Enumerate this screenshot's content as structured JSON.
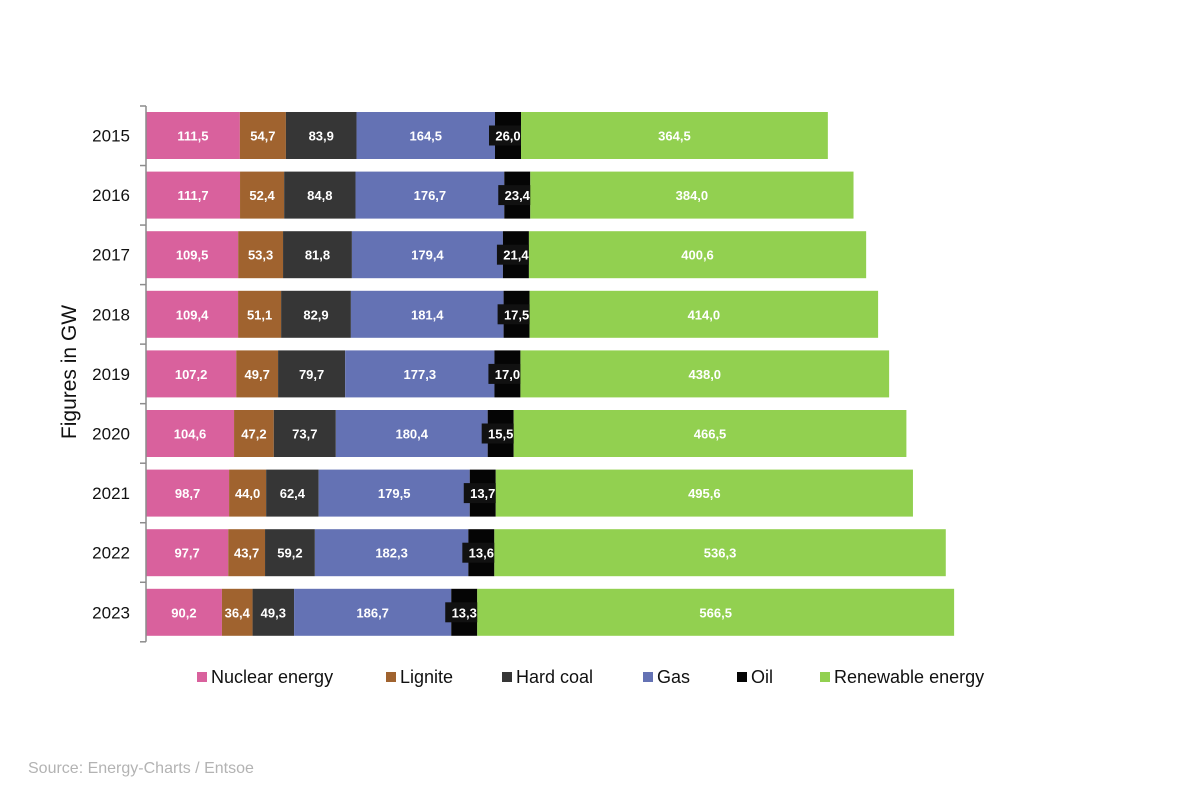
{
  "source": "Source: Energy-Charts / Entsoe",
  "chart_data": {
    "type": "bar",
    "orientation": "horizontal",
    "stacked": true,
    "title": "",
    "xlabel": "",
    "ylabel": "Figures in GW",
    "categories": [
      "2015",
      "2016",
      "2017",
      "2018",
      "2019",
      "2020",
      "2021",
      "2022",
      "2023"
    ],
    "series": [
      {
        "name": "Nuclear energy",
        "color": "#d9619d",
        "values": [
          111.5,
          111.7,
          109.5,
          109.4,
          107.2,
          104.6,
          98.7,
          97.7,
          90.2
        ],
        "labels": [
          "111,5",
          "111,7",
          "109,5",
          "109,4",
          "107,2",
          "104,6",
          "98,7",
          "97,7",
          "90,2"
        ]
      },
      {
        "name": "Lignite",
        "color": "#a0632f",
        "values": [
          54.7,
          52.4,
          53.3,
          51.1,
          49.7,
          47.2,
          44.0,
          43.7,
          36.4
        ],
        "labels": [
          "54,7",
          "52,4",
          "53,3",
          "51,1",
          "49,7",
          "47,2",
          "44,0",
          "43,7",
          "36,4"
        ]
      },
      {
        "name": "Hard coal",
        "color": "#363636",
        "values": [
          83.9,
          84.8,
          81.8,
          82.9,
          79.7,
          73.7,
          62.4,
          59.2,
          49.3
        ],
        "labels": [
          "83,9",
          "84,8",
          "81,8",
          "82,9",
          "79,7",
          "73,7",
          "62,4",
          "59,2",
          "49,3"
        ]
      },
      {
        "name": "Gas",
        "color": "#6472b4",
        "values": [
          164.5,
          176.7,
          179.4,
          181.4,
          177.3,
          180.4,
          179.5,
          182.3,
          186.7
        ],
        "labels": [
          "164,5",
          "176,7",
          "179,4",
          "181,4",
          "177,3",
          "180,4",
          "179,5",
          "182,3",
          "186,7"
        ]
      },
      {
        "name": "Oil",
        "color": "#050505",
        "values": [
          26.0,
          23.4,
          21.4,
          17.5,
          17.0,
          15.5,
          13.7,
          13.6,
          13.3
        ],
        "labels": [
          "26,0",
          "23,4",
          "21,4",
          "17,5",
          "17,0",
          "15,5",
          "13,7",
          "13,6",
          "13,3"
        ]
      },
      {
        "name": "Renewable energy",
        "color": "#92d050",
        "values": [
          364.5,
          384.0,
          400.6,
          414.0,
          438.0,
          466.5,
          495.6,
          536.3,
          566.5
        ],
        "labels": [
          "364,5",
          "384,0",
          "400,6",
          "414,0",
          "438,0",
          "466,5",
          "495,6",
          "536,3",
          "566,5"
        ]
      }
    ],
    "xlim": [
      0,
      1000
    ],
    "grid": false,
    "legend": "bottom"
  }
}
